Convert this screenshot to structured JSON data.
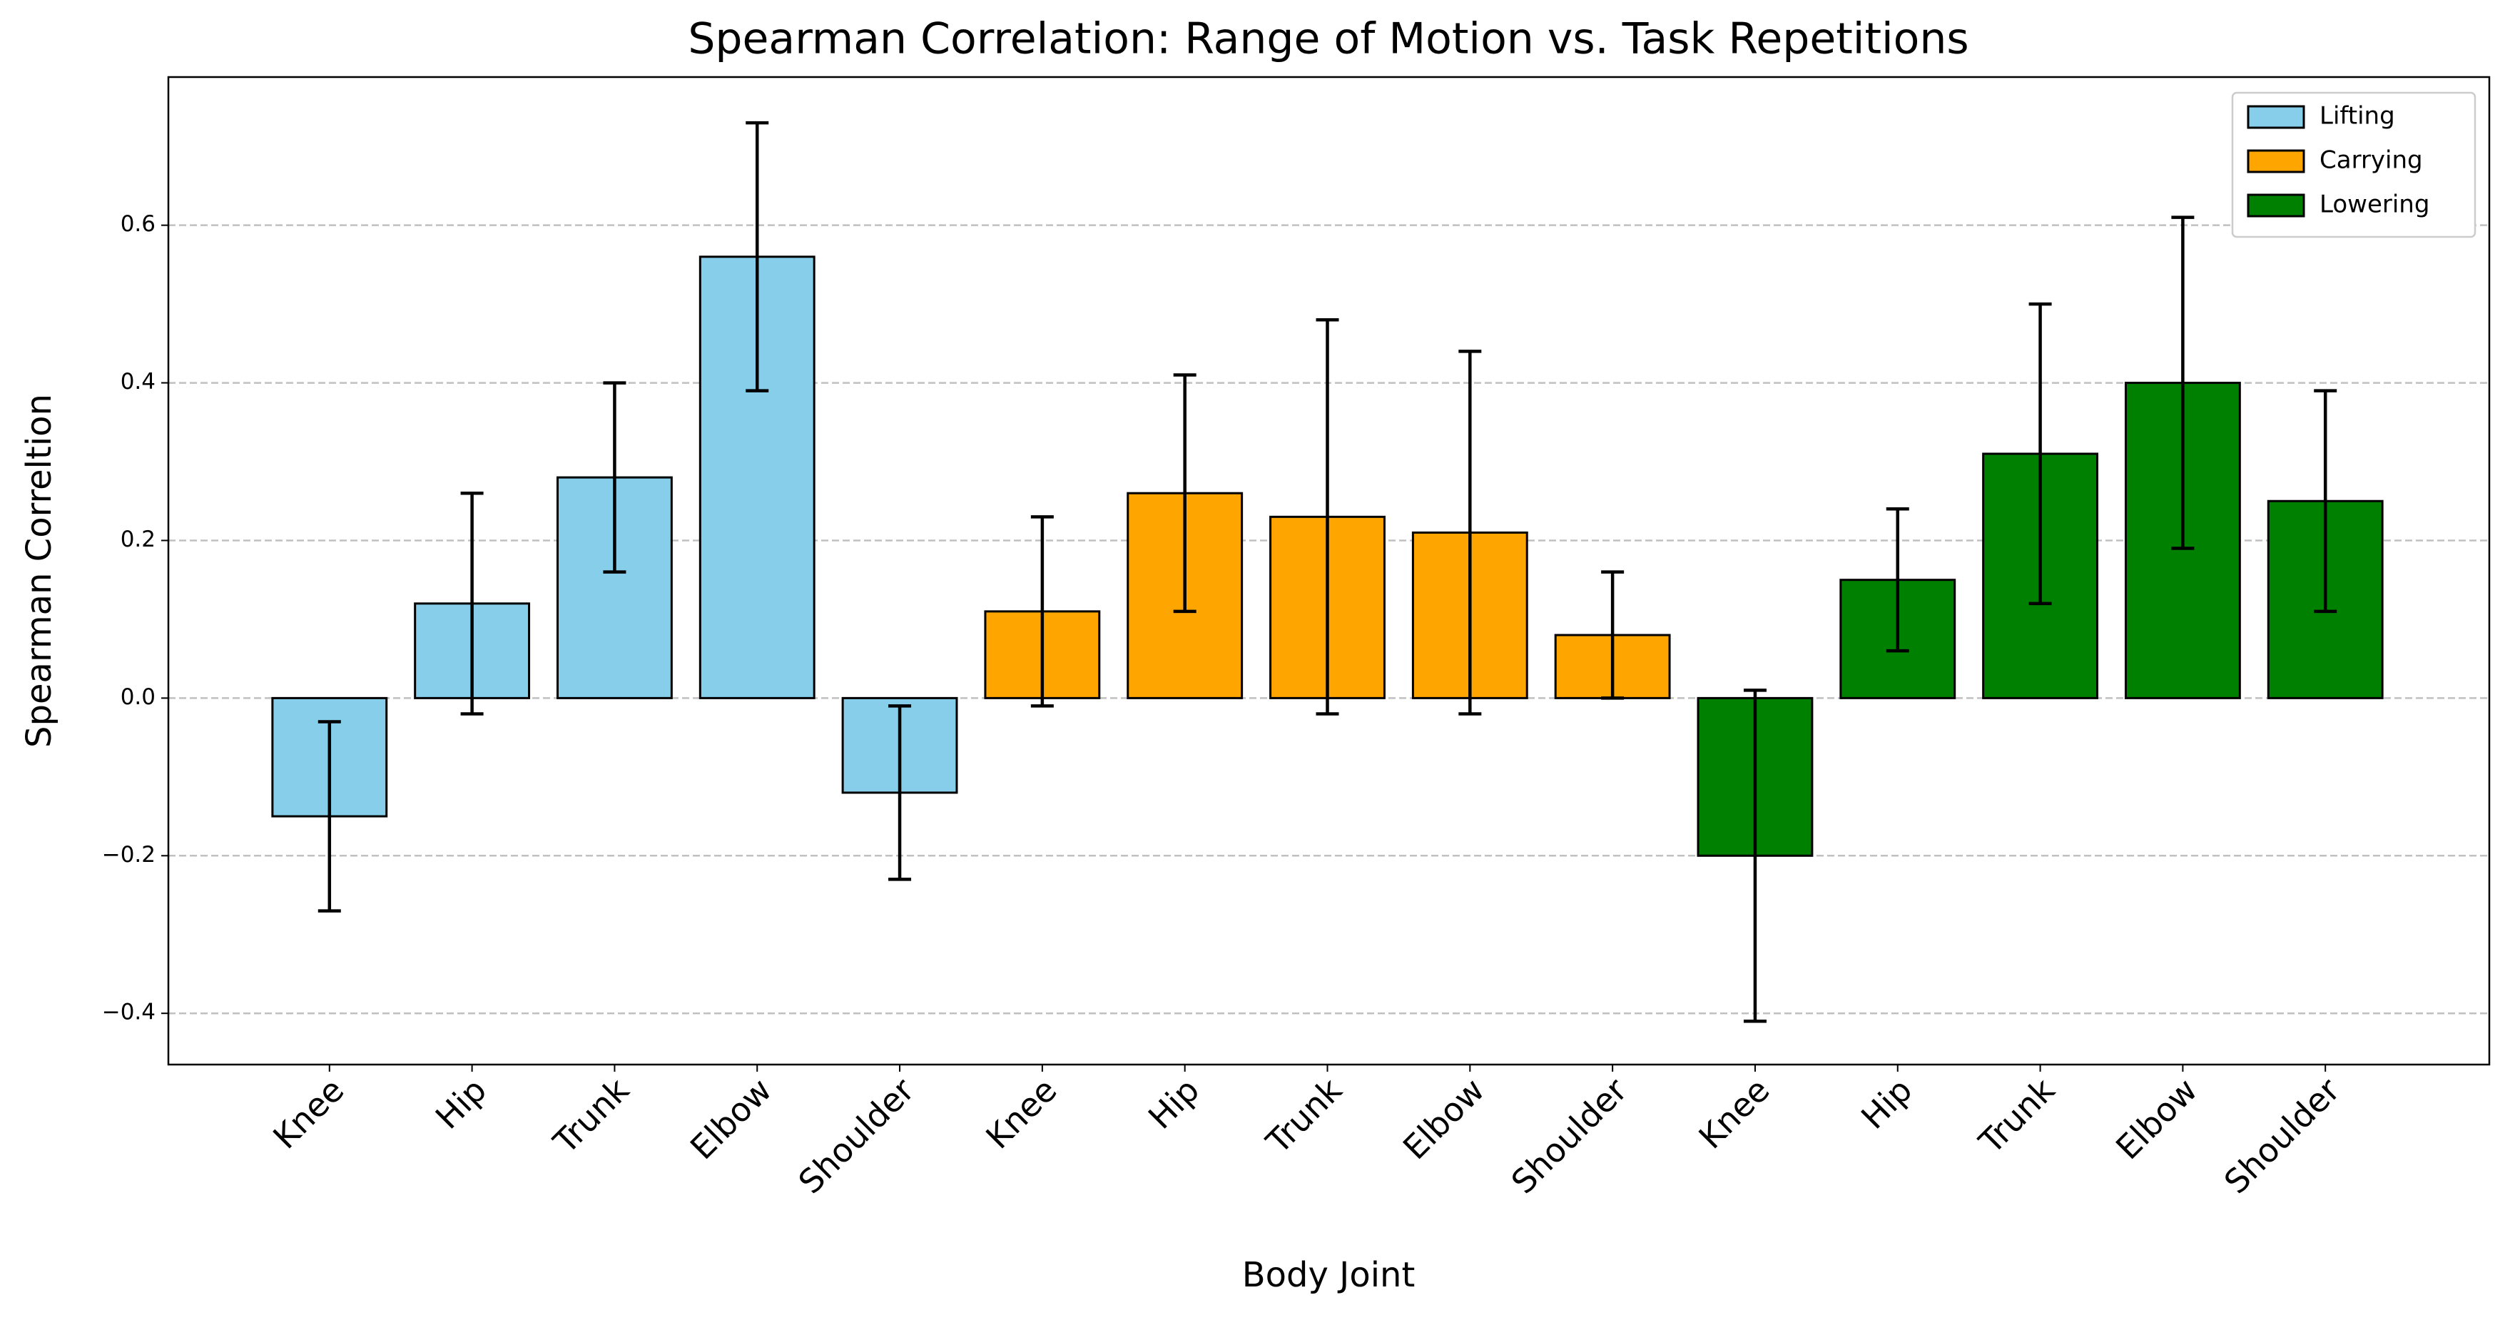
{
  "chart_data": {
    "type": "bar",
    "title": "Spearman Correlation: Range of Motion vs. Task Repetitions",
    "x_label": "Body Joint",
    "y_label": "Spearman Correltion",
    "categories": [
      "Knee",
      "Hip",
      "Trunk",
      "Elbow",
      "Shoulder",
      "Knee",
      "Hip",
      "Trunk",
      "Elbow",
      "Shoulder",
      "Knee",
      "Hip",
      "Trunk",
      "Elbow",
      "Shoulder"
    ],
    "series": [
      {
        "name": "Lifting",
        "color": "#87ceeb",
        "values": [
          -0.15,
          0.12,
          0.28,
          0.56,
          -0.12,
          null,
          null,
          null,
          null,
          null,
          null,
          null,
          null,
          null,
          null
        ],
        "errors": [
          0.12,
          0.14,
          0.12,
          0.17,
          0.11,
          null,
          null,
          null,
          null,
          null,
          null,
          null,
          null,
          null,
          null
        ]
      },
      {
        "name": "Carrying",
        "color": "#ffa500",
        "values": [
          null,
          null,
          null,
          null,
          null,
          0.11,
          0.26,
          0.23,
          0.21,
          0.08,
          null,
          null,
          null,
          null,
          null
        ],
        "errors": [
          null,
          null,
          null,
          null,
          null,
          0.12,
          0.15,
          0.25,
          0.23,
          0.08,
          null,
          null,
          null,
          null,
          null
        ]
      },
      {
        "name": "Lowering",
        "color": "#008000",
        "values": [
          null,
          null,
          null,
          null,
          null,
          null,
          null,
          null,
          null,
          null,
          -0.2,
          0.15,
          0.31,
          0.4,
          0.25
        ],
        "errors": [
          null,
          null,
          null,
          null,
          null,
          null,
          null,
          null,
          null,
          null,
          0.21,
          0.09,
          0.19,
          0.21,
          0.14
        ]
      }
    ],
    "ylim": [
      -0.465,
      0.788
    ],
    "yticks": [
      {
        "value": -0.4,
        "label": "−0.4"
      },
      {
        "value": -0.2,
        "label": "−0.2"
      },
      {
        "value": 0,
        "label": "0.0"
      },
      0.2,
      0.4,
      0.6
    ],
    "grid": true,
    "legend": "upper right"
  }
}
